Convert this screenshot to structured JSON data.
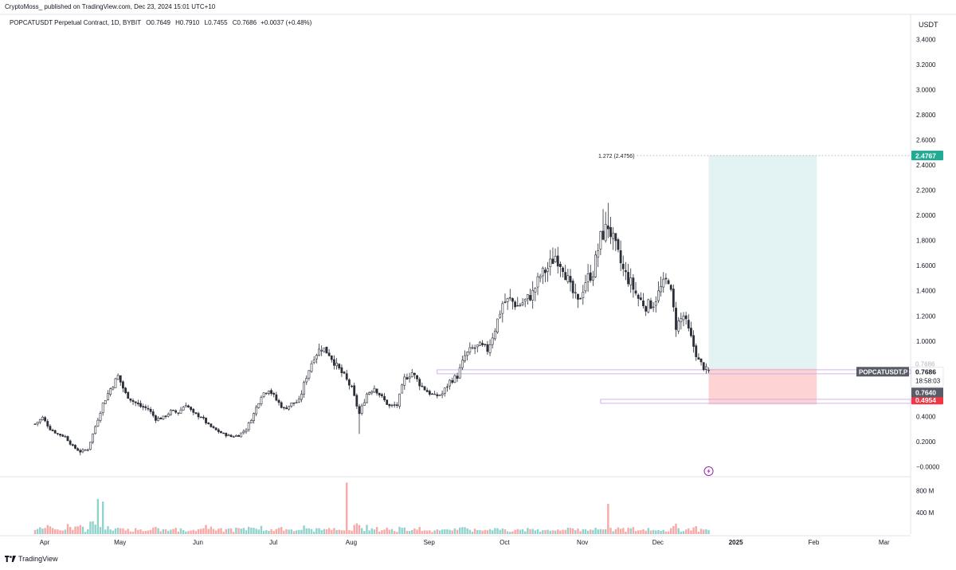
{
  "publish_line": "CryptoMoss_ published on TradingView.com, Dec 23, 2024 15:01 UTC+10",
  "symbol_line": "POPCATUSDT Perpetual Contract, 1D, BYBIT",
  "ohlc": {
    "o_label": "O",
    "o": "0.7649",
    "h_label": "H",
    "h": "0.7910",
    "l_label": "L",
    "l": "0.7455",
    "c_label": "C",
    "c": "0.7686",
    "change": "+0.0037 (+0.48%)"
  },
  "currency": "USDT",
  "branding": "TradingView",
  "colors": {
    "up": "#26a69a",
    "down": "#ef5350",
    "candle_body": "#ffffff",
    "candle_line": "#2a2e39",
    "target_zone": "#e3f2f3",
    "stop_zone": "#fdd3d3",
    "support_line": "#c3a4e8",
    "target_label": "#22ab94",
    "stop_label": "#f23645",
    "price_label": "#595c66"
  },
  "chart_data": {
    "type": "candlestick",
    "price_axis": {
      "ticks": [
        "3.4000",
        "3.2000",
        "3.0000",
        "2.8000",
        "2.6000",
        "2.4000",
        "2.2000",
        "2.0000",
        "1.8000",
        "1.6000",
        "1.4000",
        "1.2000",
        "1.0000",
        "0.4000",
        "0.2000",
        "−0.0000"
      ],
      "tick_values": [
        3.4,
        3.2,
        3.0,
        2.8,
        2.6,
        2.4,
        2.2,
        2.0,
        1.8,
        1.6,
        1.4,
        1.2,
        1.0,
        0.4,
        0.2,
        0.0
      ],
      "range": [
        -0.08,
        3.6
      ]
    },
    "time_axis": {
      "labels": [
        "Apr",
        "May",
        "Jun",
        "Jul",
        "Aug",
        "Sep",
        "Oct",
        "Nov",
        "Dec",
        "2025",
        "Feb",
        "Mar"
      ],
      "label_day_index": [
        0,
        30,
        61,
        91,
        122,
        153,
        183,
        214,
        244,
        275,
        306,
        334
      ]
    },
    "volume_axis": {
      "ticks": [
        "800 M",
        "400 M"
      ],
      "tick_values": [
        800,
        400
      ]
    },
    "price_path": [
      [
        0,
        0.34
      ],
      [
        3,
        0.39
      ],
      [
        6,
        0.3
      ],
      [
        9,
        0.26
      ],
      [
        12,
        0.24
      ],
      [
        15,
        0.16
      ],
      [
        18,
        0.12
      ],
      [
        21,
        0.14
      ],
      [
        24,
        0.32
      ],
      [
        27,
        0.5
      ],
      [
        30,
        0.62
      ],
      [
        33,
        0.72
      ],
      [
        36,
        0.58
      ],
      [
        39,
        0.52
      ],
      [
        42,
        0.48
      ],
      [
        45,
        0.46
      ],
      [
        48,
        0.38
      ],
      [
        51,
        0.39
      ],
      [
        54,
        0.44
      ],
      [
        57,
        0.43
      ],
      [
        60,
        0.5
      ],
      [
        63,
        0.42
      ],
      [
        66,
        0.4
      ],
      [
        69,
        0.33
      ],
      [
        72,
        0.29
      ],
      [
        75,
        0.26
      ],
      [
        78,
        0.24
      ],
      [
        81,
        0.25
      ],
      [
        84,
        0.3
      ],
      [
        87,
        0.42
      ],
      [
        90,
        0.57
      ],
      [
        93,
        0.62
      ],
      [
        96,
        0.53
      ],
      [
        99,
        0.46
      ],
      [
        102,
        0.5
      ],
      [
        105,
        0.52
      ],
      [
        108,
        0.72
      ],
      [
        111,
        0.88
      ],
      [
        114,
        0.95
      ],
      [
        117,
        0.9
      ],
      [
        120,
        0.8
      ],
      [
        123,
        0.72
      ],
      [
        126,
        0.62
      ],
      [
        129,
        0.42
      ],
      [
        132,
        0.58
      ],
      [
        135,
        0.63
      ],
      [
        138,
        0.55
      ],
      [
        141,
        0.48
      ],
      [
        144,
        0.49
      ],
      [
        147,
        0.7
      ],
      [
        150,
        0.75
      ],
      [
        153,
        0.66
      ],
      [
        156,
        0.6
      ],
      [
        159,
        0.56
      ],
      [
        162,
        0.58
      ],
      [
        165,
        0.68
      ],
      [
        168,
        0.72
      ],
      [
        171,
        0.88
      ],
      [
        174,
        0.94
      ],
      [
        177,
        0.96
      ],
      [
        180,
        0.93
      ],
      [
        183,
        1.1
      ],
      [
        186,
        1.3
      ],
      [
        189,
        1.33
      ],
      [
        192,
        1.28
      ],
      [
        195,
        1.32
      ],
      [
        198,
        1.38
      ],
      [
        201,
        1.52
      ],
      [
        204,
        1.58
      ],
      [
        207,
        1.68
      ],
      [
        210,
        1.6
      ],
      [
        213,
        1.42
      ],
      [
        216,
        1.3
      ],
      [
        219,
        1.48
      ],
      [
        222,
        1.55
      ],
      [
        225,
        1.82
      ],
      [
        228,
        1.92
      ],
      [
        231,
        1.74
      ],
      [
        234,
        1.56
      ],
      [
        237,
        1.46
      ],
      [
        240,
        1.34
      ],
      [
        243,
        1.28
      ],
      [
        246,
        1.3
      ],
      [
        249,
        1.42
      ],
      [
        252,
        1.5
      ],
      [
        255,
        1.12
      ],
      [
        258,
        1.2
      ],
      [
        261,
        1.02
      ],
      [
        264,
        0.84
      ],
      [
        267,
        0.77
      ],
      [
        268,
        0.7686
      ]
    ],
    "volume_note": "relative daily volume per candle",
    "annotations": {
      "fib_label": "1.272 (2.4756)",
      "target_price": "2.4767",
      "target_value": 2.4767,
      "entry_value": 0.78,
      "stop_price": "0.4954",
      "stop_value": 0.4954,
      "support_upper": 0.755,
      "support_lower": 0.52,
      "current_symbol": "POPCATUSDT.P",
      "current_price": "0.7686",
      "current_value": 0.7686,
      "countdown": "18:58:03",
      "level_price": "0.7640",
      "level_value": 0.764,
      "hidden_label": "0.7686",
      "zone_start_day": 268,
      "zone_end_day": 311
    }
  }
}
